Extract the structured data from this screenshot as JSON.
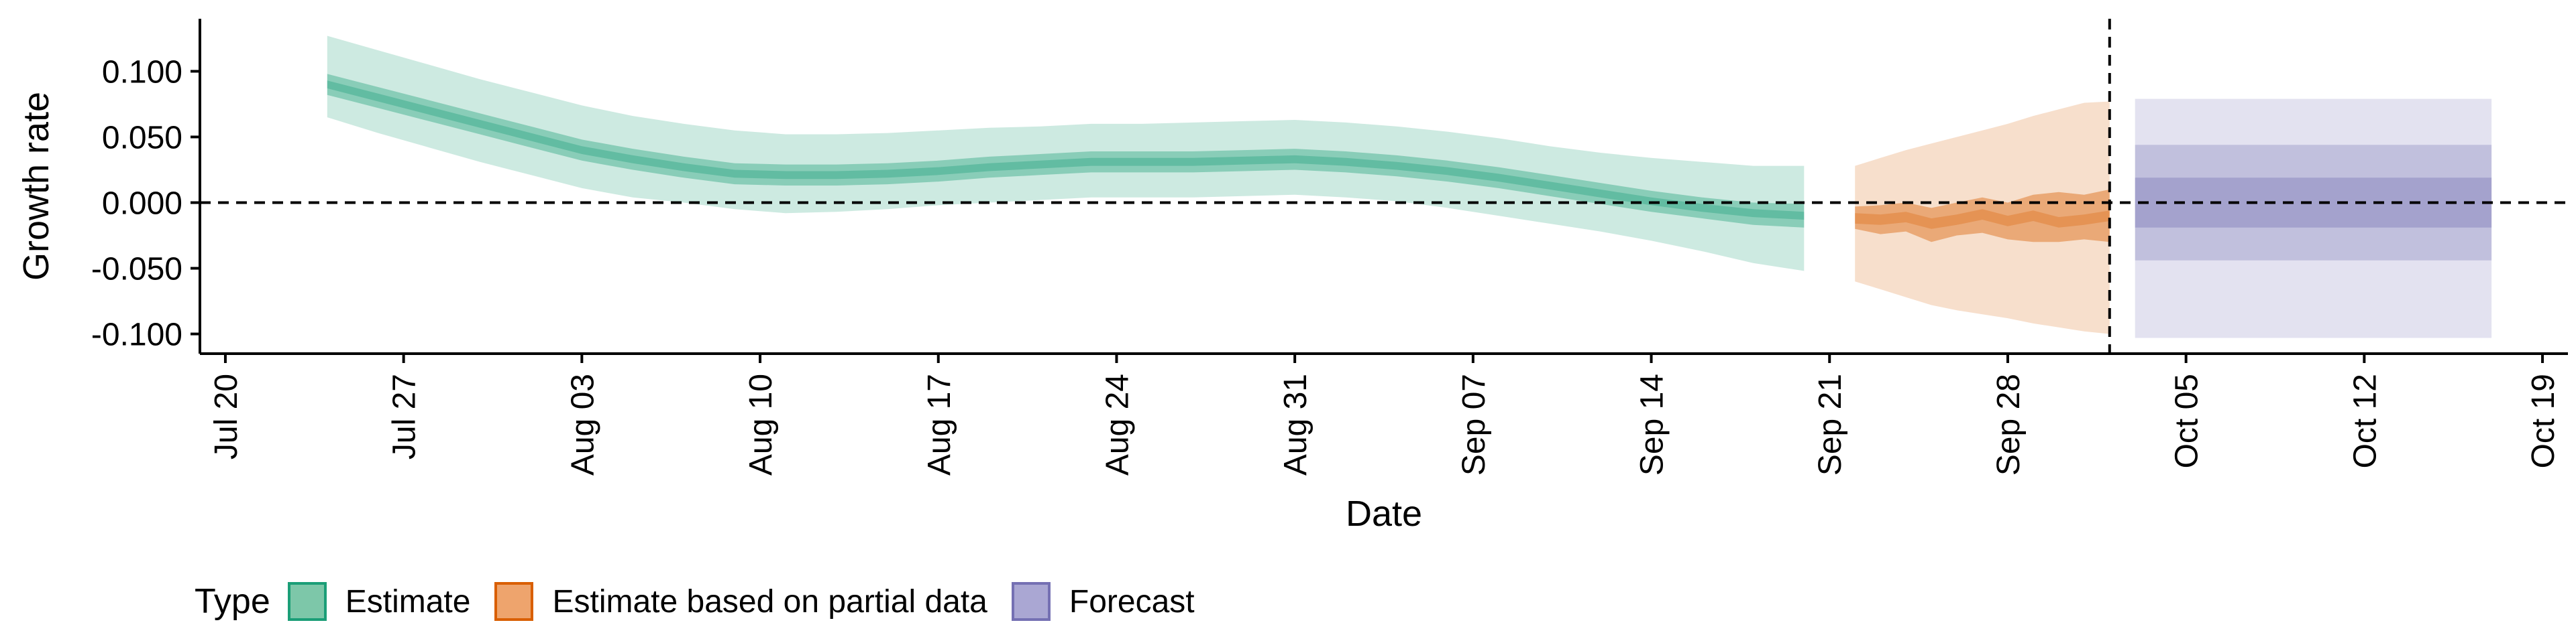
{
  "chart_data": {
    "type": "area",
    "title": "",
    "xlabel": "Date",
    "ylabel": "Growth rate",
    "xlim": [
      "2020-07-19",
      "2020-10-20"
    ],
    "ylim": [
      -0.115,
      0.14
    ],
    "x_ticks": [
      "2020-07-20",
      "2020-07-27",
      "2020-08-03",
      "2020-08-10",
      "2020-08-17",
      "2020-08-24",
      "2020-08-31",
      "2020-09-07",
      "2020-09-14",
      "2020-09-21",
      "2020-09-28",
      "2020-10-05",
      "2020-10-12",
      "2020-10-19"
    ],
    "x_tick_labels": [
      "Jul 20",
      "Jul 27",
      "Aug 03",
      "Aug 10",
      "Aug 17",
      "Aug 24",
      "Aug 31",
      "Sep 07",
      "Sep 14",
      "Sep 21",
      "Sep 28",
      "Oct 05",
      "Oct 12",
      "Oct 19"
    ],
    "y_ticks": [
      0.1,
      0.05,
      0.0,
      -0.05,
      -0.1
    ],
    "y_tick_labels": [
      "0.100",
      "0.050",
      "0.000",
      "-0.050",
      "-0.100"
    ],
    "reference_lines": {
      "horizontal_y": 0.0,
      "vertical_x": "2020-10-02"
    },
    "legend": {
      "title": "Type",
      "position": "bottom-left",
      "items": [
        {
          "label": "Estimate",
          "fill": "#7dc7a9",
          "border": "#1b9e77"
        },
        {
          "label": "Estimate based on partial data",
          "fill": "#eea46d",
          "border": "#d95f02"
        },
        {
          "label": "Forecast",
          "fill": "#aaa7d3",
          "border": "#7570b3"
        }
      ]
    },
    "series": [
      {
        "name": "Estimate",
        "color": "#1b9e77",
        "dates": [
          "2020-07-24",
          "2020-07-26",
          "2020-07-28",
          "2020-07-30",
          "2020-08-01",
          "2020-08-03",
          "2020-08-05",
          "2020-08-07",
          "2020-08-09",
          "2020-08-11",
          "2020-08-13",
          "2020-08-15",
          "2020-08-17",
          "2020-08-19",
          "2020-08-21",
          "2020-08-23",
          "2020-08-25",
          "2020-08-27",
          "2020-08-29",
          "2020-08-31",
          "2020-09-02",
          "2020-09-04",
          "2020-09-06",
          "2020-09-08",
          "2020-09-10",
          "2020-09-12",
          "2020-09-14",
          "2020-09-16",
          "2020-09-18",
          "2020-09-20"
        ],
        "median": [
          0.09,
          0.08,
          0.07,
          0.06,
          0.05,
          0.04,
          0.033,
          0.027,
          0.022,
          0.021,
          0.021,
          0.022,
          0.024,
          0.027,
          0.029,
          0.031,
          0.031,
          0.031,
          0.032,
          0.033,
          0.031,
          0.028,
          0.024,
          0.019,
          0.013,
          0.007,
          0.001,
          -0.004,
          -0.008,
          -0.01
        ],
        "lower50": [
          0.082,
          0.072,
          0.062,
          0.052,
          0.042,
          0.032,
          0.025,
          0.019,
          0.014,
          0.013,
          0.013,
          0.014,
          0.016,
          0.019,
          0.021,
          0.023,
          0.023,
          0.023,
          0.024,
          0.025,
          0.023,
          0.02,
          0.016,
          0.011,
          0.005,
          -0.001,
          -0.007,
          -0.012,
          -0.017,
          -0.019
        ],
        "upper50": [
          0.098,
          0.088,
          0.078,
          0.068,
          0.058,
          0.048,
          0.041,
          0.035,
          0.03,
          0.029,
          0.029,
          0.03,
          0.032,
          0.035,
          0.037,
          0.039,
          0.039,
          0.039,
          0.04,
          0.041,
          0.039,
          0.036,
          0.032,
          0.027,
          0.021,
          0.015,
          0.009,
          0.004,
          0.0,
          -0.001
        ],
        "lower90": [
          0.065,
          0.053,
          0.042,
          0.031,
          0.021,
          0.011,
          0.004,
          0.0,
          -0.005,
          -0.008,
          -0.007,
          -0.005,
          -0.002,
          0.0,
          0.002,
          0.004,
          0.004,
          0.004,
          0.005,
          0.006,
          0.004,
          0.001,
          -0.004,
          -0.01,
          -0.016,
          -0.022,
          -0.029,
          -0.037,
          -0.046,
          -0.052
        ],
        "upper90": [
          0.127,
          0.116,
          0.105,
          0.094,
          0.084,
          0.074,
          0.066,
          0.06,
          0.055,
          0.052,
          0.052,
          0.053,
          0.055,
          0.057,
          0.058,
          0.06,
          0.06,
          0.061,
          0.062,
          0.063,
          0.061,
          0.058,
          0.054,
          0.049,
          0.043,
          0.038,
          0.034,
          0.031,
          0.028,
          0.028
        ]
      },
      {
        "name": "Estimate based on partial data",
        "color": "#d95f02",
        "dates": [
          "2020-09-22",
          "2020-09-23",
          "2020-09-24",
          "2020-09-25",
          "2020-09-26",
          "2020-09-27",
          "2020-09-28",
          "2020-09-29",
          "2020-09-30",
          "2020-10-01",
          "2020-10-02"
        ],
        "median": [
          -0.012,
          -0.013,
          -0.011,
          -0.016,
          -0.013,
          -0.009,
          -0.014,
          -0.01,
          -0.015,
          -0.013,
          -0.01
        ],
        "lower50": [
          -0.02,
          -0.024,
          -0.022,
          -0.03,
          -0.025,
          -0.023,
          -0.028,
          -0.03,
          -0.03,
          -0.028,
          -0.03
        ],
        "upper50": [
          -0.003,
          -0.002,
          0.0,
          -0.004,
          0.0,
          0.004,
          0.0,
          0.006,
          0.008,
          0.006,
          0.01
        ],
        "lower90": [
          -0.06,
          -0.066,
          -0.072,
          -0.078,
          -0.082,
          -0.085,
          -0.088,
          -0.092,
          -0.095,
          -0.098,
          -0.1
        ],
        "upper90": [
          0.028,
          0.034,
          0.04,
          0.045,
          0.05,
          0.055,
          0.06,
          0.066,
          0.071,
          0.076,
          0.077
        ]
      },
      {
        "name": "Forecast",
        "color": "#7570b3",
        "dates": [
          "2020-10-03",
          "2020-10-17"
        ],
        "median": [
          0.0,
          0.0
        ],
        "lower50": [
          -0.019,
          -0.019
        ],
        "upper50": [
          0.019,
          0.019
        ],
        "lower75": [
          -0.044,
          -0.044
        ],
        "upper75": [
          0.044,
          0.044
        ],
        "lower90": [
          -0.103,
          -0.103
        ],
        "upper90": [
          0.079,
          0.079
        ]
      }
    ]
  }
}
